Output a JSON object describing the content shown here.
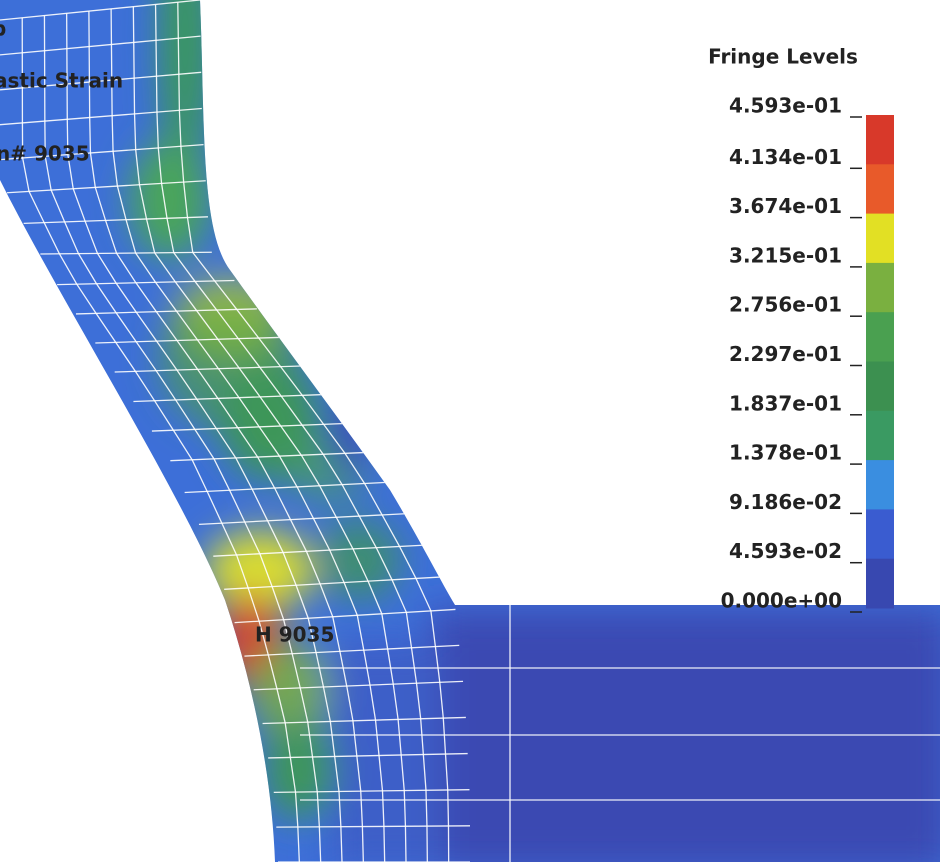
{
  "header": {
    "line1": "p",
    "line2": "astic Strain",
    "line3": "n# 9035"
  },
  "legend": {
    "title": "Fringe Levels",
    "levels": [
      "4.593e-01",
      "4.134e-01",
      "3.674e-01",
      "3.215e-01",
      "2.756e-01",
      "2.297e-01",
      "1.837e-01",
      "1.378e-01",
      "9.186e-02",
      "4.593e-02",
      "0.000e+00"
    ]
  },
  "annotation": "H 9035"
}
